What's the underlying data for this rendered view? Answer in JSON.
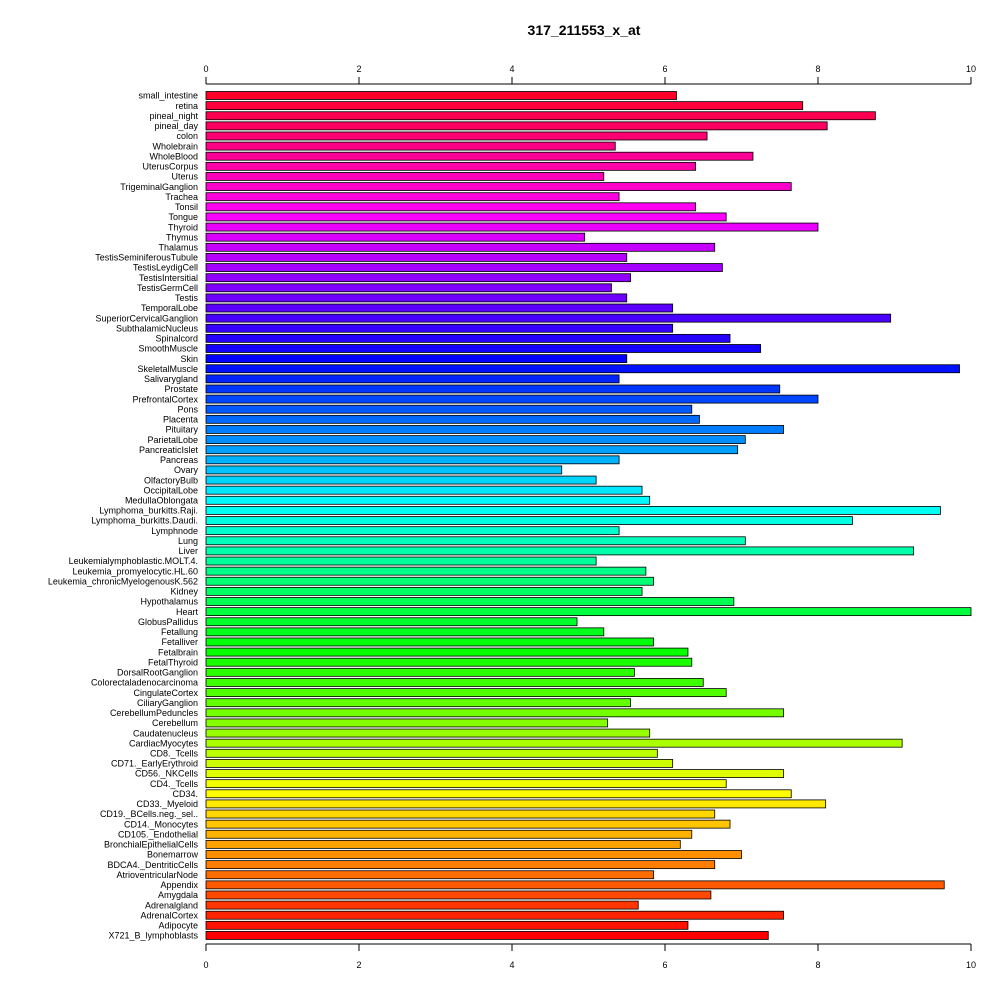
{
  "chart_data": {
    "type": "bar",
    "orientation": "horizontal",
    "title": "317_211553_x_at",
    "xlabel": "",
    "ylabel": "",
    "xlim": [
      0,
      10
    ],
    "ticks": [
      "0",
      "2",
      "4",
      "6",
      "8",
      "10"
    ],
    "tick_values": [
      0,
      2,
      4,
      6,
      8,
      10
    ],
    "axis_positions": [
      "top",
      "bottom"
    ],
    "grid": false,
    "legend": "none",
    "colormap": "rainbow",
    "categories": [
      "small_intestine",
      "retina",
      "pineal_night",
      "pineal_day",
      "colon",
      "Wholebrain",
      "WholeBlood",
      "UterusCorpus",
      "Uterus",
      "TrigeminalGanglion",
      "Trachea",
      "Tonsil",
      "Tongue",
      "Thyroid",
      "Thymus",
      "Thalamus",
      "TestisSeminiferousTubule",
      "TestisLeydigCell",
      "TestisIntersitial",
      "TestisGermCell",
      "Testis",
      "TemporalLobe",
      "SuperiorCervicalGanglion",
      "SubthalamicNucleus",
      "Spinalcord",
      "SmoothMuscle",
      "Skin",
      "SkeletalMuscle",
      "Salivarygland",
      "Prostate",
      "PrefrontalCortex",
      "Pons",
      "Placenta",
      "Pituitary",
      "ParietalLobe",
      "PancreaticIslet",
      "Pancreas",
      "Ovary",
      "OlfactoryBulb",
      "OccipitalLobe",
      "MedullaOblongata",
      "Lymphoma_burkitts.Raji.",
      "Lymphoma_burkitts.Daudi.",
      "Lymphnode",
      "Lung",
      "Liver",
      "Leukemialymphoblastic.MOLT.4.",
      "Leukemia_promyelocytic.HL.60",
      "Leukemia_chronicMyelogenousK.562",
      "Kidney",
      "Hypothalamus",
      "Heart",
      "GlobusPallidus",
      "Fetallung",
      "Fetalliver",
      "Fetalbrain",
      "FetalThyroid",
      "DorsalRootGanglion",
      "Colorectaladenocarcinoma",
      "CingulateCortex",
      "CiliaryGanglion",
      "CerebellumPeduncles",
      "Cerebellum",
      "Caudatenucleus",
      "CardiacMyocytes",
      "CD8._Tcells",
      "CD71._EarlyErythroid",
      "CD56._NKCells",
      "CD4._Tcells",
      "CD34.",
      "CD33._Myeloid",
      "CD19._BCells.neg._sel..",
      "CD14._Monocytes",
      "CD105._Endothelial",
      "BronchialEpithelialCells",
      "Bonemarrow",
      "BDCA4._DentriticCells",
      "AtrioventricularNode",
      "Appendix",
      "Amygdala",
      "Adrenalgland",
      "AdrenalCortex",
      "Adipocyte",
      "X721_B_lymphoblasts"
    ],
    "values": [
      6.15,
      7.8,
      8.75,
      8.12,
      6.55,
      5.35,
      7.15,
      6.4,
      5.2,
      7.65,
      5.4,
      6.4,
      6.8,
      8.0,
      4.95,
      6.65,
      5.5,
      6.75,
      5.55,
      5.3,
      5.5,
      6.1,
      8.95,
      6.1,
      6.85,
      7.25,
      5.5,
      9.85,
      5.4,
      7.5,
      8.0,
      6.35,
      6.45,
      7.55,
      7.05,
      6.95,
      5.4,
      4.65,
      5.1,
      5.7,
      5.8,
      9.6,
      8.45,
      5.4,
      7.05,
      9.25,
      5.1,
      5.75,
      5.85,
      5.7,
      6.9,
      10.0,
      4.85,
      5.2,
      5.85,
      6.3,
      6.35,
      5.6,
      6.5,
      6.8,
      5.55,
      7.55,
      5.25,
      5.8,
      9.1,
      5.9,
      6.1,
      7.55,
      6.8,
      7.65,
      8.1,
      6.65,
      6.85,
      6.35,
      6.2,
      7.0,
      6.65,
      5.85,
      9.65,
      6.6,
      5.65,
      7.55,
      6.3,
      7.35
    ]
  }
}
